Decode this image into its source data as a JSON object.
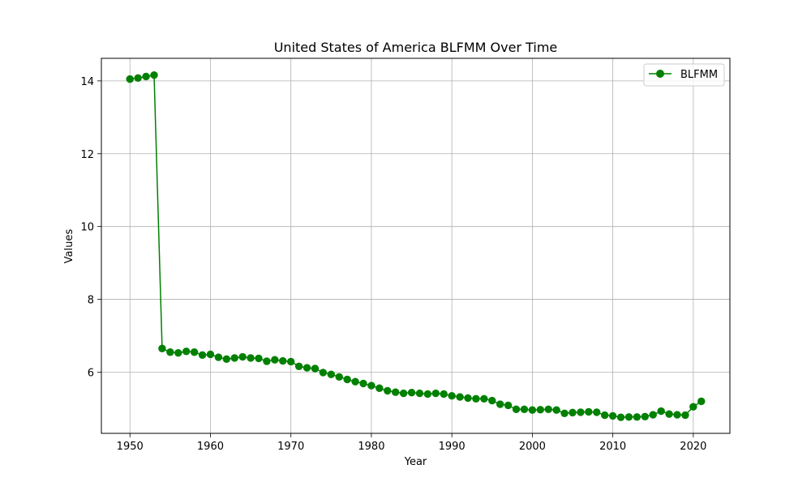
{
  "chart_data": {
    "type": "line",
    "title": "United States of America BLFMM Over Time",
    "xlabel": "Year",
    "ylabel": "Values",
    "xlim": [
      1946.45,
      2024.55
    ],
    "ylim": [
      4.32,
      14.62
    ],
    "xticks": [
      1950,
      1960,
      1970,
      1980,
      1990,
      2000,
      2010,
      2020
    ],
    "yticks": [
      6,
      8,
      10,
      12,
      14
    ],
    "grid": true,
    "legend_position": "top-right",
    "colors": {
      "series": "#008000",
      "grid": "#b0b0b0",
      "axis": "#000000"
    },
    "marker": "circle",
    "series": [
      {
        "name": "BLFMM",
        "x": [
          1950,
          1951,
          1952,
          1953,
          1954,
          1955,
          1956,
          1957,
          1958,
          1959,
          1960,
          1961,
          1962,
          1963,
          1964,
          1965,
          1966,
          1967,
          1968,
          1969,
          1970,
          1971,
          1972,
          1973,
          1974,
          1975,
          1976,
          1977,
          1978,
          1979,
          1980,
          1981,
          1982,
          1983,
          1984,
          1985,
          1986,
          1987,
          1988,
          1989,
          1990,
          1991,
          1992,
          1993,
          1994,
          1995,
          1996,
          1997,
          1998,
          1999,
          2000,
          2001,
          2002,
          2003,
          2004,
          2005,
          2006,
          2007,
          2008,
          2009,
          2010,
          2011,
          2012,
          2013,
          2014,
          2015,
          2016,
          2017,
          2018,
          2019,
          2020,
          2021
        ],
        "y": [
          14.05,
          14.08,
          14.12,
          14.16,
          6.65,
          6.55,
          6.53,
          6.57,
          6.55,
          6.47,
          6.49,
          6.41,
          6.36,
          6.39,
          6.42,
          6.39,
          6.38,
          6.3,
          6.34,
          6.31,
          6.29,
          6.16,
          6.12,
          6.1,
          5.99,
          5.94,
          5.87,
          5.8,
          5.74,
          5.69,
          5.63,
          5.56,
          5.49,
          5.45,
          5.42,
          5.44,
          5.42,
          5.4,
          5.42,
          5.4,
          5.35,
          5.32,
          5.29,
          5.27,
          5.27,
          5.22,
          5.12,
          5.09,
          4.98,
          4.98,
          4.96,
          4.97,
          4.98,
          4.96,
          4.87,
          4.89,
          4.9,
          4.91,
          4.9,
          4.82,
          4.8,
          4.76,
          4.77,
          4.77,
          4.78,
          4.83,
          4.93,
          4.85,
          4.83,
          4.82,
          5.05,
          5.2
        ]
      }
    ]
  }
}
